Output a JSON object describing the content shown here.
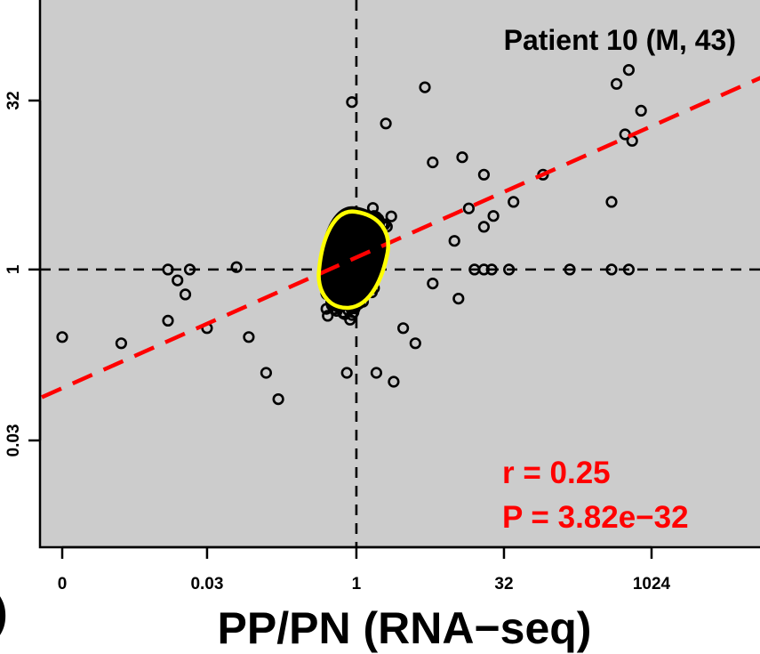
{
  "chart_data": {
    "type": "scatter",
    "title": "Patient 10 (M, 43)",
    "xlabel": "PP/PN (RNA−seq)",
    "ylabel": "",
    "x_scale": "log",
    "y_scale": "log",
    "xlim": [
      0.0003,
      30000
    ],
    "ylim": [
      0.0012,
      180
    ],
    "x_ticks": [
      "0",
      "0.03",
      "1",
      "32",
      "1024"
    ],
    "x_tick_values": [
      0.001,
      0.03,
      1,
      32,
      1024
    ],
    "y_ticks": [
      "0.03",
      "1",
      "32"
    ],
    "y_tick_values": [
      0.03,
      1,
      32
    ],
    "reference_lines": {
      "vertical_x": 1,
      "horizontal_y": 1
    },
    "grid": false,
    "background": "#cccccc",
    "fit_line": {
      "color": "#ff0000",
      "style": "dashed",
      "points": [
        [
          0.0003,
          0.055
        ],
        [
          30000,
          70
        ]
      ]
    },
    "density_contour_color": "#ffff00",
    "point_color": "#000000",
    "annotations": [
      "r = 0.25",
      "P = 3.82e−32"
    ],
    "outlier_points": [
      {
        "x": 0.001,
        "y": 0.25
      },
      {
        "x": 0.004,
        "y": 0.22
      },
      {
        "x": 0.012,
        "y": 0.35
      },
      {
        "x": 0.018,
        "y": 0.6
      },
      {
        "x": 0.02,
        "y": 1.0
      },
      {
        "x": 0.06,
        "y": 1.05
      },
      {
        "x": 0.012,
        "y": 1.0
      },
      {
        "x": 0.015,
        "y": 0.8
      },
      {
        "x": 0.03,
        "y": 0.3
      },
      {
        "x": 0.08,
        "y": 0.25
      },
      {
        "x": 0.12,
        "y": 0.12
      },
      {
        "x": 0.16,
        "y": 0.07
      },
      {
        "x": 0.8,
        "y": 0.12
      },
      {
        "x": 1.6,
        "y": 0.12
      },
      {
        "x": 2.4,
        "y": 0.1
      },
      {
        "x": 0.9,
        "y": 31
      },
      {
        "x": 5,
        "y": 42
      },
      {
        "x": 2,
        "y": 20
      },
      {
        "x": 6,
        "y": 9
      },
      {
        "x": 12,
        "y": 10
      },
      {
        "x": 20,
        "y": 7
      },
      {
        "x": 14,
        "y": 3.5
      },
      {
        "x": 25,
        "y": 3.0
      },
      {
        "x": 20,
        "y": 2.4
      },
      {
        "x": 10,
        "y": 1.8
      },
      {
        "x": 11,
        "y": 0.55
      },
      {
        "x": 6,
        "y": 0.75
      },
      {
        "x": 16,
        "y": 1.0
      },
      {
        "x": 20,
        "y": 1.0
      },
      {
        "x": 24,
        "y": 1.0
      },
      {
        "x": 36,
        "y": 1.0
      },
      {
        "x": 150,
        "y": 1.0
      },
      {
        "x": 400,
        "y": 1.0
      },
      {
        "x": 600,
        "y": 1.0
      },
      {
        "x": 40,
        "y": 4.0
      },
      {
        "x": 80,
        "y": 7.0
      },
      {
        "x": 400,
        "y": 4.0
      },
      {
        "x": 450,
        "y": 45
      },
      {
        "x": 600,
        "y": 60
      },
      {
        "x": 800,
        "y": 26
      },
      {
        "x": 550,
        "y": 16
      },
      {
        "x": 650,
        "y": 14
      },
      {
        "x": 4,
        "y": 0.22
      },
      {
        "x": 3,
        "y": 0.3
      }
    ]
  }
}
